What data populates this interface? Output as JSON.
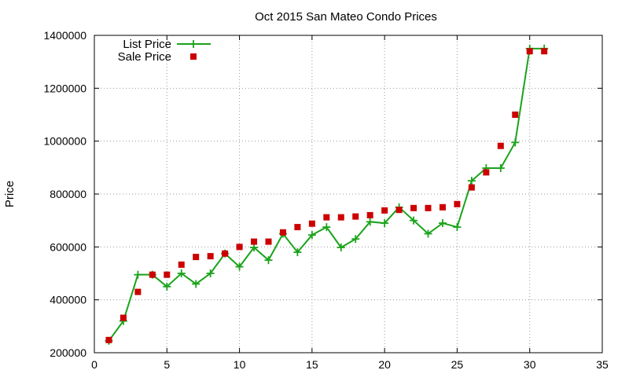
{
  "chart_data": {
    "type": "line",
    "title": "Oct 2015 San Mateo Condo Prices",
    "xlabel": "",
    "ylabel": "Price",
    "xlim": [
      0,
      35
    ],
    "ylim": [
      200000,
      1400000
    ],
    "x_ticks": [
      0,
      5,
      10,
      15,
      20,
      25,
      30,
      35
    ],
    "y_ticks": [
      200000,
      400000,
      600000,
      800000,
      1000000,
      1200000,
      1400000
    ],
    "grid": true,
    "legend_position": "top-left",
    "series": [
      {
        "name": "List Price",
        "style": "linespoints",
        "marker": "plus",
        "color": "#1aa31a",
        "x": [
          1,
          2,
          3,
          4,
          5,
          6,
          7,
          8,
          9,
          10,
          11,
          12,
          13,
          14,
          15,
          16,
          17,
          18,
          19,
          20,
          21,
          22,
          23,
          24,
          25,
          26,
          27,
          28,
          29,
          30,
          31
        ],
        "values": [
          245000,
          320000,
          495000,
          495000,
          450000,
          500000,
          460000,
          500000,
          575000,
          525000,
          598000,
          550000,
          650000,
          580000,
          645000,
          675000,
          598000,
          630000,
          695000,
          690000,
          750000,
          700000,
          650000,
          690000,
          675000,
          850000,
          898000,
          898000,
          995000,
          1350000,
          1350000
        ]
      },
      {
        "name": "Sale Price",
        "style": "points",
        "marker": "square",
        "color": "#cc0000",
        "x": [
          1,
          2,
          3,
          4,
          5,
          6,
          7,
          8,
          9,
          10,
          11,
          12,
          13,
          14,
          15,
          16,
          17,
          18,
          19,
          20,
          21,
          22,
          23,
          24,
          25,
          26,
          27,
          28,
          29,
          30,
          31
        ],
        "values": [
          248000,
          332000,
          430000,
          495000,
          495000,
          533000,
          562000,
          565000,
          575000,
          600000,
          620000,
          620000,
          655000,
          675000,
          688000,
          712000,
          712000,
          715000,
          720000,
          738000,
          740000,
          747000,
          747000,
          750000,
          762000,
          825000,
          882000,
          982000,
          1100000,
          1340000,
          1340000
        ]
      }
    ]
  }
}
